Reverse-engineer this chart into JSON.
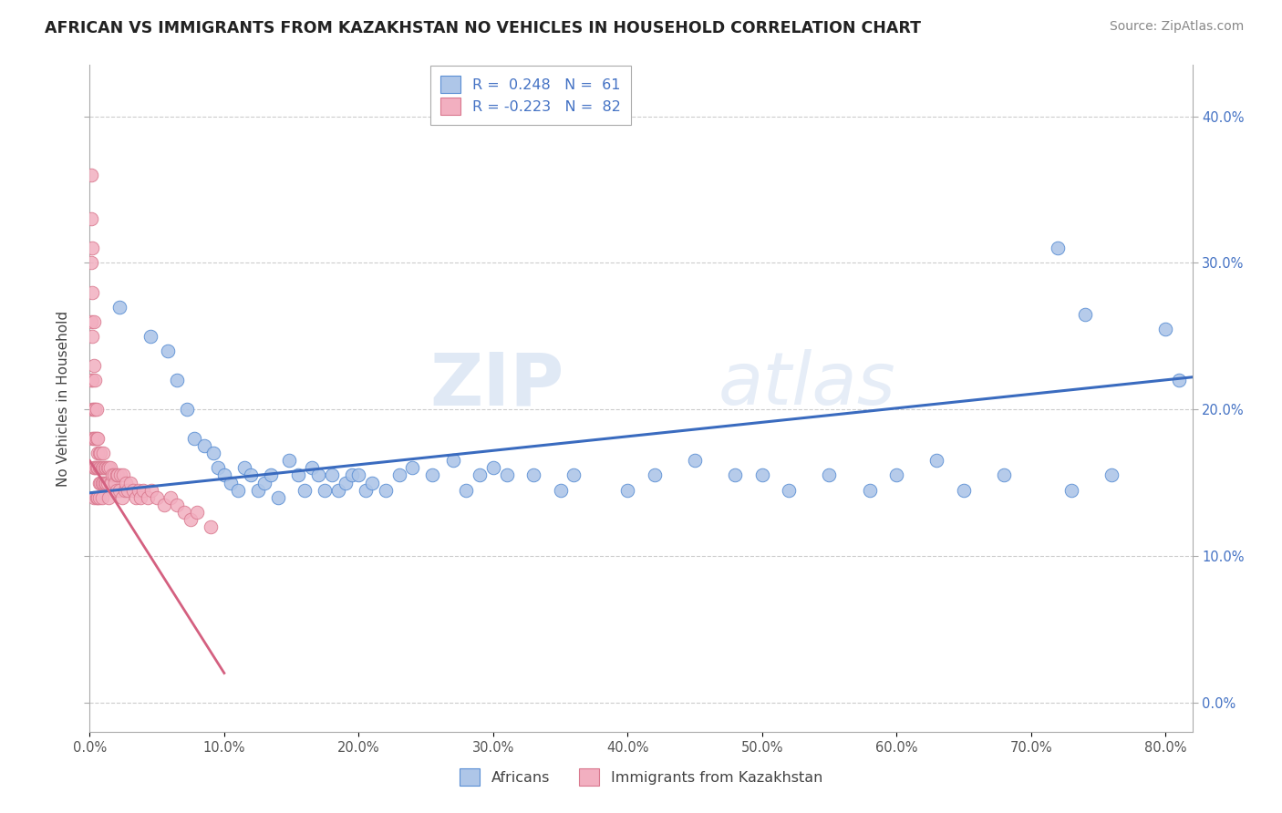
{
  "title": "AFRICAN VS IMMIGRANTS FROM KAZAKHSTAN NO VEHICLES IN HOUSEHOLD CORRELATION CHART",
  "source": "Source: ZipAtlas.com",
  "ylabel": "No Vehicles in Household",
  "xlim": [
    0.0,
    0.82
  ],
  "ylim": [
    -0.02,
    0.435
  ],
  "blue_R": 0.248,
  "blue_N": 61,
  "pink_R": -0.223,
  "pink_N": 82,
  "blue_color": "#aec6e8",
  "pink_color": "#f2afc0",
  "blue_edge_color": "#5b8fd4",
  "pink_edge_color": "#d9788e",
  "blue_line_color": "#3a6bbf",
  "pink_line_color": "#d46080",
  "legend_label_blue": "Africans",
  "legend_label_pink": "Immigrants from Kazakhstan",
  "watermark_zip": "ZIP",
  "watermark_atlas": "atlas",
  "xtick_vals": [
    0.0,
    0.1,
    0.2,
    0.3,
    0.4,
    0.5,
    0.6,
    0.7,
    0.8
  ],
  "xtick_labels": [
    "0.0%",
    "10.0%",
    "20.0%",
    "30.0%",
    "40.0%",
    "50.0%",
    "60.0%",
    "70.0%",
    "80.0%"
  ],
  "ytick_vals": [
    0.0,
    0.1,
    0.2,
    0.3,
    0.4
  ],
  "ytick_labels": [
    "0.0%",
    "10.0%",
    "20.0%",
    "30.0%",
    "40.0%"
  ],
  "blue_x": [
    0.022,
    0.045,
    0.058,
    0.065,
    0.072,
    0.078,
    0.085,
    0.092,
    0.095,
    0.1,
    0.105,
    0.11,
    0.115,
    0.12,
    0.125,
    0.13,
    0.135,
    0.14,
    0.148,
    0.155,
    0.16,
    0.165,
    0.17,
    0.175,
    0.18,
    0.185,
    0.19,
    0.195,
    0.2,
    0.205,
    0.21,
    0.22,
    0.23,
    0.24,
    0.255,
    0.27,
    0.28,
    0.29,
    0.3,
    0.31,
    0.33,
    0.35,
    0.36,
    0.4,
    0.42,
    0.45,
    0.48,
    0.5,
    0.52,
    0.55,
    0.58,
    0.6,
    0.63,
    0.65,
    0.68,
    0.72,
    0.73,
    0.74,
    0.76,
    0.8,
    0.81
  ],
  "blue_y": [
    0.27,
    0.25,
    0.24,
    0.22,
    0.2,
    0.18,
    0.175,
    0.17,
    0.16,
    0.155,
    0.15,
    0.145,
    0.16,
    0.155,
    0.145,
    0.15,
    0.155,
    0.14,
    0.165,
    0.155,
    0.145,
    0.16,
    0.155,
    0.145,
    0.155,
    0.145,
    0.15,
    0.155,
    0.155,
    0.145,
    0.15,
    0.145,
    0.155,
    0.16,
    0.155,
    0.165,
    0.145,
    0.155,
    0.16,
    0.155,
    0.155,
    0.145,
    0.155,
    0.145,
    0.155,
    0.165,
    0.155,
    0.155,
    0.145,
    0.155,
    0.145,
    0.155,
    0.165,
    0.145,
    0.155,
    0.31,
    0.145,
    0.265,
    0.155,
    0.255,
    0.22
  ],
  "pink_x": [
    0.001,
    0.001,
    0.001,
    0.001,
    0.001,
    0.002,
    0.002,
    0.002,
    0.002,
    0.002,
    0.002,
    0.003,
    0.003,
    0.003,
    0.003,
    0.003,
    0.003,
    0.004,
    0.004,
    0.004,
    0.004,
    0.005,
    0.005,
    0.005,
    0.005,
    0.006,
    0.006,
    0.006,
    0.006,
    0.007,
    0.007,
    0.007,
    0.007,
    0.008,
    0.008,
    0.008,
    0.009,
    0.009,
    0.009,
    0.01,
    0.01,
    0.01,
    0.011,
    0.011,
    0.012,
    0.012,
    0.013,
    0.013,
    0.014,
    0.014,
    0.015,
    0.015,
    0.016,
    0.017,
    0.018,
    0.019,
    0.02,
    0.02,
    0.021,
    0.022,
    0.023,
    0.024,
    0.025,
    0.026,
    0.027,
    0.028,
    0.03,
    0.032,
    0.034,
    0.036,
    0.038,
    0.04,
    0.043,
    0.046,
    0.05,
    0.055,
    0.06,
    0.065,
    0.07,
    0.075,
    0.08,
    0.09
  ],
  "pink_y": [
    0.36,
    0.33,
    0.3,
    0.26,
    0.22,
    0.31,
    0.28,
    0.25,
    0.22,
    0.2,
    0.18,
    0.26,
    0.23,
    0.2,
    0.18,
    0.16,
    0.14,
    0.22,
    0.2,
    0.18,
    0.16,
    0.2,
    0.18,
    0.16,
    0.14,
    0.18,
    0.17,
    0.16,
    0.14,
    0.17,
    0.16,
    0.15,
    0.14,
    0.17,
    0.16,
    0.15,
    0.16,
    0.15,
    0.14,
    0.17,
    0.16,
    0.15,
    0.16,
    0.15,
    0.16,
    0.15,
    0.16,
    0.15,
    0.16,
    0.14,
    0.16,
    0.15,
    0.15,
    0.155,
    0.155,
    0.15,
    0.155,
    0.145,
    0.155,
    0.145,
    0.155,
    0.14,
    0.155,
    0.145,
    0.15,
    0.145,
    0.15,
    0.145,
    0.14,
    0.145,
    0.14,
    0.145,
    0.14,
    0.145,
    0.14,
    0.135,
    0.14,
    0.135,
    0.13,
    0.125,
    0.13,
    0.12
  ]
}
